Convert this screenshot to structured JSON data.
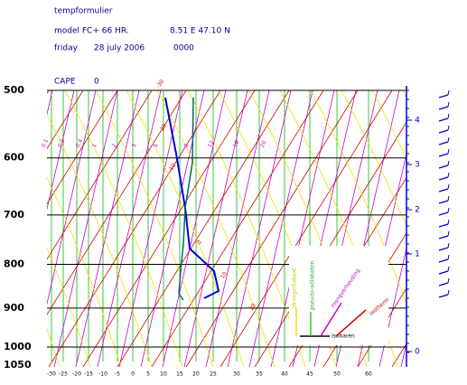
{
  "header": {
    "title": "tempformulier",
    "model": "model FC+ 66 HR.",
    "location": "8.51 E 47.10 N",
    "day": "friday",
    "date": "28 july 2006",
    "time": "0000"
  },
  "cape": {
    "label": "CAPE",
    "value": 0
  },
  "pressure_labels": [
    500,
    600,
    700,
    800,
    900,
    1000,
    1050
  ],
  "temperature_labels": [
    -30,
    -25,
    -20,
    -15,
    -10,
    -5,
    0,
    5,
    10,
    15,
    20,
    25,
    30,
    35,
    40,
    45,
    50,
    60
  ],
  "height_labels": [
    0,
    1,
    2,
    3,
    4
  ],
  "mixing_labels": [
    0.1,
    0.2,
    0.4,
    1,
    2,
    3,
    5,
    8,
    12,
    16,
    20
  ],
  "isotherm_labels": [
    -30,
    -20,
    -10,
    0,
    10,
    20
  ],
  "legend": {
    "dry": "droogadiabaat",
    "pseudo": "pseudo-adiabaten",
    "mixing": "mengverhouding",
    "isotherm": "isotherm",
    "isobar": "isobaren"
  }
}
